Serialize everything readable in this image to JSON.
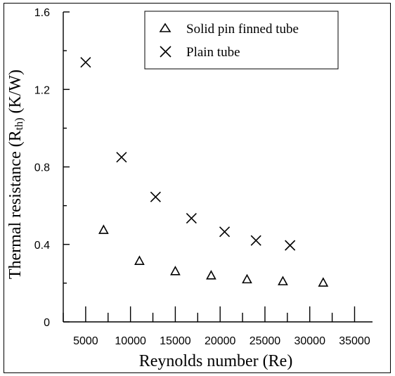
{
  "chart_data": {
    "type": "scatter",
    "title": "",
    "xlabel": "Reynolds number (Re)",
    "ylabel": "Thermal resistance (R",
    "ylabel_sub": "th)",
    "ylabel_unit": " (K/W)",
    "xlim": [
      2500,
      37000
    ],
    "ylim": [
      0,
      1.6
    ],
    "x_ticks": [
      5000,
      10000,
      15000,
      20000,
      25000,
      30000,
      35000
    ],
    "y_ticks": [
      0,
      0.4,
      0.8,
      1.2,
      1.6
    ],
    "y_tick_labels": [
      "0",
      "0.4",
      "0.8",
      "1.2",
      "1.6"
    ],
    "grid": false,
    "legend_position": "top-right",
    "series": [
      {
        "name": "Solid pin finned tube",
        "marker": "triangle",
        "x": [
          7000,
          11000,
          15000,
          19000,
          23000,
          27000,
          31500
        ],
        "y": [
          0.475,
          0.315,
          0.262,
          0.24,
          0.22,
          0.21,
          0.203
        ]
      },
      {
        "name": "Plain tube",
        "marker": "x",
        "x": [
          5000,
          9000,
          12800,
          16800,
          20500,
          24000,
          27800
        ],
        "y": [
          1.34,
          0.85,
          0.645,
          0.535,
          0.465,
          0.42,
          0.395
        ]
      }
    ]
  }
}
